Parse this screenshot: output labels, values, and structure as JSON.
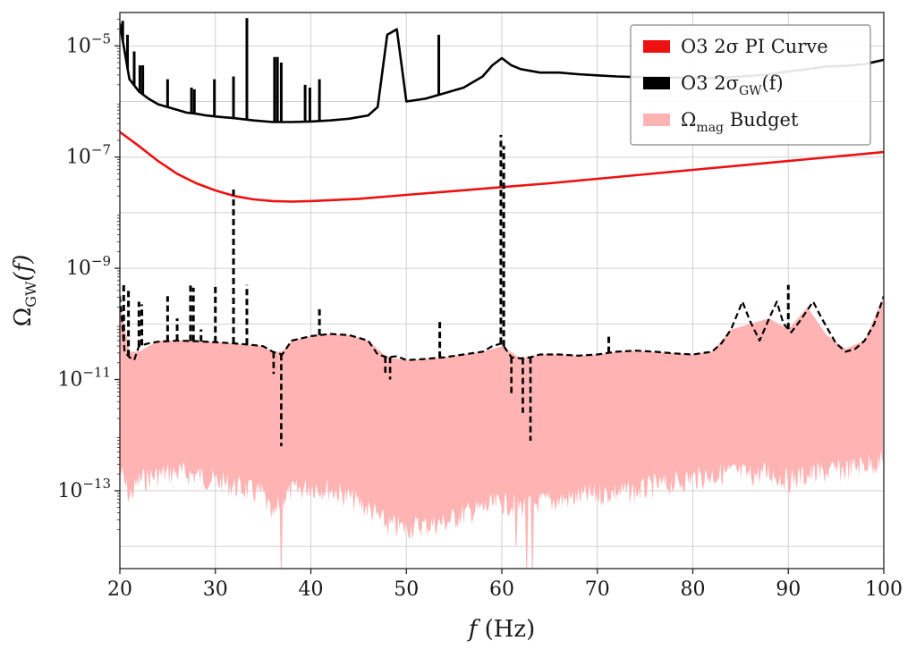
{
  "chart_data": {
    "type": "line",
    "x_axis": {
      "scale": "linear",
      "range": [
        20,
        100
      ],
      "ticks": [
        20,
        30,
        40,
        50,
        60,
        70,
        80,
        90,
        100
      ],
      "tick_labels": [
        "20",
        "30",
        "40",
        "50",
        "60",
        "70",
        "80",
        "90",
        "100"
      ],
      "label_main": "f",
      "label_rest": "(Hz)"
    },
    "y_axis": {
      "scale": "log",
      "range_exponent": [
        -14.4,
        -4.4
      ],
      "tick_exponents": [
        -13,
        -11,
        -9,
        -7,
        -5
      ],
      "tick_labels": [
        "10",
        "10",
        "10",
        "10",
        "10"
      ],
      "tick_superscripts": [
        "−13",
        "−11",
        "−9",
        "−7",
        "−5"
      ],
      "label_main": "Ω",
      "label_sub": "GW",
      "label_rest": "(f)"
    },
    "grid": true,
    "legend": {
      "placement": "top-right",
      "entries": [
        {
          "key": "pi",
          "main": "O3 2σ PI Curve",
          "color": "#ee1111"
        },
        {
          "key": "sigma",
          "main": "O3 2σ",
          "sub": "GW",
          "rest": "(f)",
          "color": "#000000"
        },
        {
          "key": "budget",
          "main": "Ω",
          "sub": "mag",
          "rest": " Budget",
          "color": "#ffb3b3"
        }
      ]
    },
    "series": [
      {
        "name": "O3 2σ PI Curve",
        "style": "solid",
        "color": "#ee1111",
        "x": [
          20,
          22,
          24,
          26,
          28,
          30,
          32,
          34,
          36,
          38,
          40,
          45,
          50,
          55,
          60,
          65,
          70,
          75,
          80,
          85,
          90,
          95,
          100
        ],
        "log10_y": [
          -6.55,
          -6.8,
          -7.07,
          -7.3,
          -7.47,
          -7.6,
          -7.7,
          -7.76,
          -7.79,
          -7.8,
          -7.79,
          -7.75,
          -7.68,
          -7.61,
          -7.54,
          -7.47,
          -7.39,
          -7.31,
          -7.23,
          -7.15,
          -7.07,
          -6.99,
          -6.91
        ]
      },
      {
        "name": "O3 2σGW(f)",
        "style": "solid",
        "color": "#000000",
        "x": [
          20,
          21,
          22,
          23,
          24,
          25,
          26,
          27,
          28,
          29,
          30,
          32,
          34,
          36,
          38,
          40,
          42,
          44,
          46,
          47,
          48,
          49,
          50,
          52,
          54,
          56,
          58,
          59,
          60,
          61,
          62,
          64,
          66,
          68,
          70,
          72,
          74,
          76,
          78,
          80,
          82,
          84,
          86,
          88,
          90,
          92,
          94,
          96,
          98,
          100
        ],
        "log10_y": [
          -4.6,
          -5.6,
          -5.82,
          -5.95,
          -6.05,
          -6.1,
          -6.15,
          -6.2,
          -6.22,
          -6.25,
          -6.27,
          -6.3,
          -6.34,
          -6.37,
          -6.37,
          -6.36,
          -6.34,
          -6.31,
          -6.25,
          -6.1,
          -4.8,
          -4.7,
          -6.0,
          -5.95,
          -5.85,
          -5.75,
          -5.55,
          -5.35,
          -5.22,
          -5.35,
          -5.42,
          -5.48,
          -5.48,
          -5.51,
          -5.53,
          -5.55,
          -5.56,
          -5.56,
          -5.57,
          -5.58,
          -5.58,
          -5.56,
          -5.54,
          -5.51,
          -5.46,
          -5.42,
          -5.37,
          -5.36,
          -5.33,
          -5.25
        ],
        "spikes": [
          {
            "x": 20.3,
            "log10_top": -4.55
          },
          {
            "x": 20.8,
            "log10_top": -4.8
          },
          {
            "x": 21.5,
            "log10_top": -5.1
          },
          {
            "x": 22.1,
            "log10_top": -5.35
          },
          {
            "x": 22.4,
            "log10_top": -5.35
          },
          {
            "x": 25.0,
            "log10_top": -5.6
          },
          {
            "x": 27.5,
            "log10_top": -5.75
          },
          {
            "x": 27.8,
            "log10_top": -5.78
          },
          {
            "x": 29.9,
            "log10_top": -5.6
          },
          {
            "x": 31.9,
            "log10_top": -5.55
          },
          {
            "x": 33.3,
            "log10_top": -4.5
          },
          {
            "x": 36.2,
            "log10_top": -5.2
          },
          {
            "x": 36.5,
            "log10_top": -5.2
          },
          {
            "x": 36.9,
            "log10_top": -5.3
          },
          {
            "x": 39.4,
            "log10_top": -5.7
          },
          {
            "x": 39.9,
            "log10_top": -5.75
          },
          {
            "x": 40.9,
            "log10_top": -5.6
          },
          {
            "x": 53.4,
            "log10_top": -4.8
          }
        ]
      },
      {
        "name": "O3 2σGW(f) dashed",
        "style": "dashed",
        "color": "#000000",
        "x": [
          20,
          20.5,
          21,
          21.5,
          22,
          23,
          24,
          26,
          28,
          30,
          32,
          34,
          35,
          36,
          37,
          38,
          40,
          42,
          44,
          46,
          47,
          48,
          49,
          50,
          52,
          54,
          56,
          58,
          59,
          60,
          61,
          62,
          63,
          64,
          66,
          68,
          70,
          72,
          74,
          76,
          78,
          80,
          82,
          83,
          84,
          85.2,
          86,
          87,
          88,
          88.8,
          89.5,
          90.3,
          91.2,
          92.6,
          93.5,
          95,
          96,
          97,
          98,
          99,
          100
        ],
        "log10_y": [
          -9.5,
          -10.5,
          -10.6,
          -10.65,
          -10.4,
          -10.35,
          -10.32,
          -10.3,
          -10.31,
          -10.33,
          -10.35,
          -10.38,
          -10.4,
          -10.5,
          -10.55,
          -10.3,
          -10.22,
          -10.18,
          -10.2,
          -10.3,
          -10.55,
          -10.6,
          -10.58,
          -10.65,
          -10.63,
          -10.6,
          -10.55,
          -10.5,
          -10.4,
          -10.35,
          -10.6,
          -10.62,
          -10.6,
          -10.55,
          -10.55,
          -10.57,
          -10.55,
          -10.5,
          -10.48,
          -10.5,
          -10.53,
          -10.55,
          -10.5,
          -10.35,
          -10.1,
          -9.6,
          -9.95,
          -10.3,
          -9.9,
          -9.6,
          -10.0,
          -10.15,
          -9.95,
          -9.6,
          -9.9,
          -10.35,
          -10.5,
          -10.45,
          -10.3,
          -10.0,
          -9.5
        ],
        "spikes": [
          {
            "x": 20.4,
            "log10_top": -9.3
          },
          {
            "x": 20.9,
            "log10_top": -9.4
          },
          {
            "x": 22.0,
            "log10_top": -9.6
          },
          {
            "x": 22.3,
            "log10_top": -9.65
          },
          {
            "x": 25.0,
            "log10_top": -9.5
          },
          {
            "x": 26.0,
            "log10_top": -9.9
          },
          {
            "x": 27.4,
            "log10_top": -9.3
          },
          {
            "x": 27.7,
            "log10_top": -9.35
          },
          {
            "x": 28.5,
            "log10_top": -10.1
          },
          {
            "x": 30.0,
            "log10_top": -9.3
          },
          {
            "x": 31.9,
            "log10_top": -7.55
          },
          {
            "x": 33.3,
            "log10_top": -9.3
          },
          {
            "x": 40.9,
            "log10_top": -9.7
          },
          {
            "x": 53.5,
            "log10_top": -9.9
          },
          {
            "x": 59.9,
            "log10_top": -6.6
          },
          {
            "x": 60.2,
            "log10_top": -6.8
          },
          {
            "x": 71.2,
            "log10_top": -10.2
          },
          {
            "x": 90.0,
            "log10_top": -9.3
          }
        ],
        "dips": [
          {
            "x": 36.1,
            "log10_bottom": -10.9
          },
          {
            "x": 36.9,
            "log10_bottom": -12.2
          },
          {
            "x": 47.8,
            "log10_bottom": -10.9
          },
          {
            "x": 48.3,
            "log10_bottom": -11.0
          },
          {
            "x": 61.0,
            "log10_bottom": -11.3
          },
          {
            "x": 62.2,
            "log10_bottom": -11.6
          },
          {
            "x": 63.0,
            "log10_bottom": -12.1
          }
        ]
      },
      {
        "name": "Ωmag Budget",
        "style": "filled-band",
        "color": "#ffb3b3",
        "x": [
          20,
          21,
          22,
          24,
          26,
          28,
          30,
          32,
          34,
          35,
          36,
          37,
          38,
          40,
          42,
          44,
          46,
          48,
          50,
          52,
          54,
          56,
          58,
          60,
          62,
          64,
          66,
          68,
          70,
          72,
          74,
          76,
          78,
          80,
          82,
          84,
          86,
          88,
          90,
          92,
          94,
          96,
          98,
          100
        ],
        "log10_upper": [
          -9.6,
          -10.5,
          -10.5,
          -10.3,
          -10.3,
          -10.3,
          -10.33,
          -10.35,
          -10.38,
          -10.4,
          -10.5,
          -10.5,
          -10.3,
          -10.22,
          -10.18,
          -10.2,
          -10.3,
          -10.6,
          -10.65,
          -10.63,
          -10.6,
          -10.55,
          -10.5,
          -10.4,
          -10.62,
          -10.55,
          -10.55,
          -10.57,
          -10.55,
          -10.5,
          -10.48,
          -10.5,
          -10.53,
          -10.55,
          -10.5,
          -10.1,
          -10.0,
          -9.9,
          -10.1,
          -9.7,
          -10.2,
          -10.45,
          -10.3,
          -9.5
        ],
        "log10_lower": [
          -12.4,
          -12.9,
          -12.6,
          -12.5,
          -12.45,
          -12.5,
          -12.6,
          -12.7,
          -12.8,
          -12.85,
          -13.3,
          -12.9,
          -12.8,
          -12.7,
          -12.75,
          -12.9,
          -13.1,
          -13.4,
          -13.45,
          -13.4,
          -13.35,
          -13.2,
          -13.1,
          -13.0,
          -13.05,
          -13.0,
          -12.95,
          -12.9,
          -12.85,
          -12.8,
          -12.8,
          -12.7,
          -12.65,
          -12.55,
          -12.5,
          -12.45,
          -12.5,
          -12.45,
          -12.6,
          -12.5,
          -12.45,
          -12.4,
          -12.3,
          -12.25
        ],
        "deep_notches": [
          {
            "x": 36.9,
            "log10_bottom": -14.4
          },
          {
            "x": 61.5,
            "log10_bottom": -14.0
          },
          {
            "x": 62.6,
            "log10_bottom": -14.4
          },
          {
            "x": 63.2,
            "log10_bottom": -14.4
          }
        ]
      }
    ]
  }
}
